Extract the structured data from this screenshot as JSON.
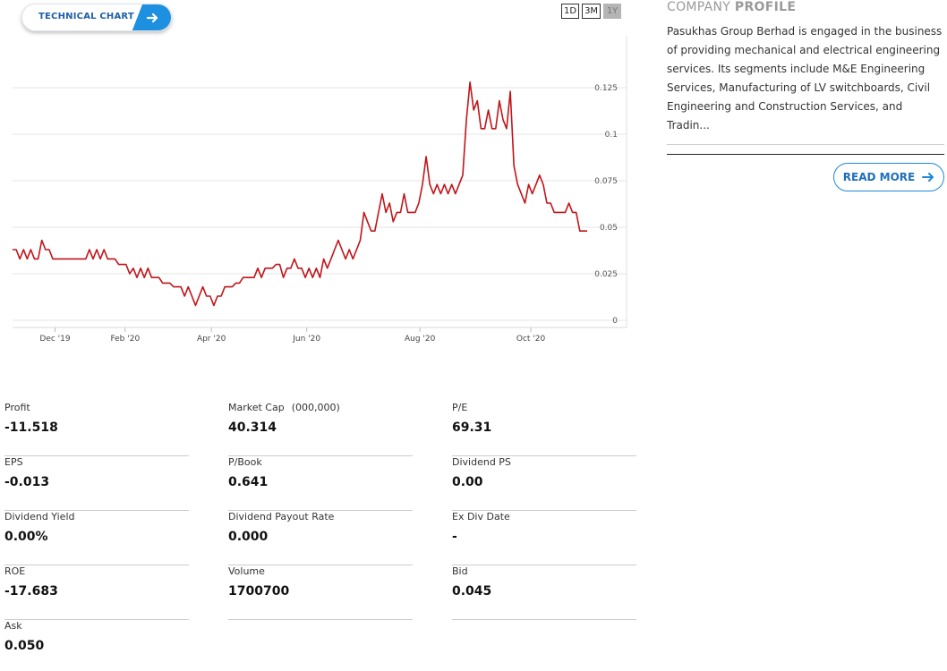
{
  "technical_chart": {
    "label": "TECHNICAL CHART",
    "icon": "arrow-right-icon"
  },
  "range_buttons": [
    {
      "label": "1D",
      "active": false
    },
    {
      "label": "3M",
      "active": false
    },
    {
      "label": "1Y",
      "active": true
    }
  ],
  "chart_data": {
    "type": "line",
    "color": "#c0151a",
    "ylim": [
      0,
      0.15
    ],
    "y_ticks": [
      "0.125",
      "0.1",
      "0.075",
      "0.05",
      "0.025",
      "0"
    ],
    "x_ticks": [
      "Dec '19",
      "Feb '20",
      "Apr '20",
      "Jun '20",
      "Aug '20",
      "Oct '20"
    ],
    "grid": true,
    "series": [
      {
        "values": [
          0.038,
          0.038,
          0.033,
          0.038,
          0.033,
          0.038,
          0.033,
          0.033,
          0.043,
          0.038,
          0.038,
          0.033,
          0.033,
          0.033,
          0.033,
          0.033,
          0.033,
          0.033,
          0.033,
          0.033,
          0.033,
          0.038,
          0.033,
          0.038,
          0.033,
          0.038,
          0.033,
          0.033,
          0.033,
          0.03,
          0.03,
          0.03,
          0.025,
          0.028,
          0.023,
          0.028,
          0.023,
          0.028,
          0.023,
          0.023,
          0.023,
          0.02,
          0.02,
          0.02,
          0.018,
          0.018,
          0.018,
          0.013,
          0.018,
          0.013,
          0.008,
          0.013,
          0.018,
          0.013,
          0.013,
          0.008,
          0.013,
          0.013,
          0.018,
          0.018,
          0.018,
          0.02,
          0.02,
          0.023,
          0.023,
          0.023,
          0.023,
          0.028,
          0.023,
          0.028,
          0.028,
          0.028,
          0.03,
          0.03,
          0.023,
          0.028,
          0.028,
          0.033,
          0.028,
          0.028,
          0.023,
          0.028,
          0.023,
          0.028,
          0.023,
          0.033,
          0.028,
          0.033,
          0.038,
          0.043,
          0.038,
          0.033,
          0.038,
          0.033,
          0.038,
          0.043,
          0.058,
          0.053,
          0.048,
          0.048,
          0.058,
          0.068,
          0.058,
          0.063,
          0.053,
          0.058,
          0.058,
          0.068,
          0.058,
          0.058,
          0.058,
          0.063,
          0.073,
          0.088,
          0.073,
          0.068,
          0.073,
          0.068,
          0.073,
          0.068,
          0.073,
          0.068,
          0.073,
          0.078,
          0.108,
          0.128,
          0.113,
          0.118,
          0.103,
          0.103,
          0.113,
          0.103,
          0.103,
          0.118,
          0.108,
          0.103,
          0.123,
          0.083,
          0.073,
          0.068,
          0.063,
          0.073,
          0.068,
          0.073,
          0.078,
          0.073,
          0.063,
          0.063,
          0.058,
          0.058,
          0.058,
          0.058,
          0.063,
          0.058,
          0.058,
          0.048,
          0.048,
          0.048
        ]
      }
    ]
  },
  "profile": {
    "title_light": "COMPANY",
    "title_bold": "PROFILE",
    "text": "Pasukhas Group Berhad is engaged in the business of providing mechanical and electrical engineering services. Its segments include M&E Engineering Services, Manufacturing of LV switchboards, Civil Engineering and Construction Services, and Tradin...",
    "read_more": "READ MORE",
    "read_more_icon": "arrow-right-icon"
  },
  "stats": [
    {
      "label": "Profit",
      "value": "-11.518"
    },
    {
      "label": "Market Cap",
      "unit": "(000,000)",
      "value": "40.314"
    },
    {
      "label": "P/E",
      "value": "69.31"
    },
    {
      "label": "EPS",
      "value": "-0.013"
    },
    {
      "label": "P/Book",
      "value": "0.641"
    },
    {
      "label": "Dividend PS",
      "value": "0.00"
    },
    {
      "label": "Dividend Yield",
      "value": "0.00%"
    },
    {
      "label": "Dividend Payout Rate",
      "value": "0.000"
    },
    {
      "label": "Ex Div Date",
      "value": "-"
    },
    {
      "label": "ROE",
      "value": "-17.683"
    },
    {
      "label": "Volume",
      "value": "1700700"
    },
    {
      "label": "Bid",
      "value": "0.045"
    },
    {
      "label": "Ask",
      "value": "0.050"
    }
  ]
}
